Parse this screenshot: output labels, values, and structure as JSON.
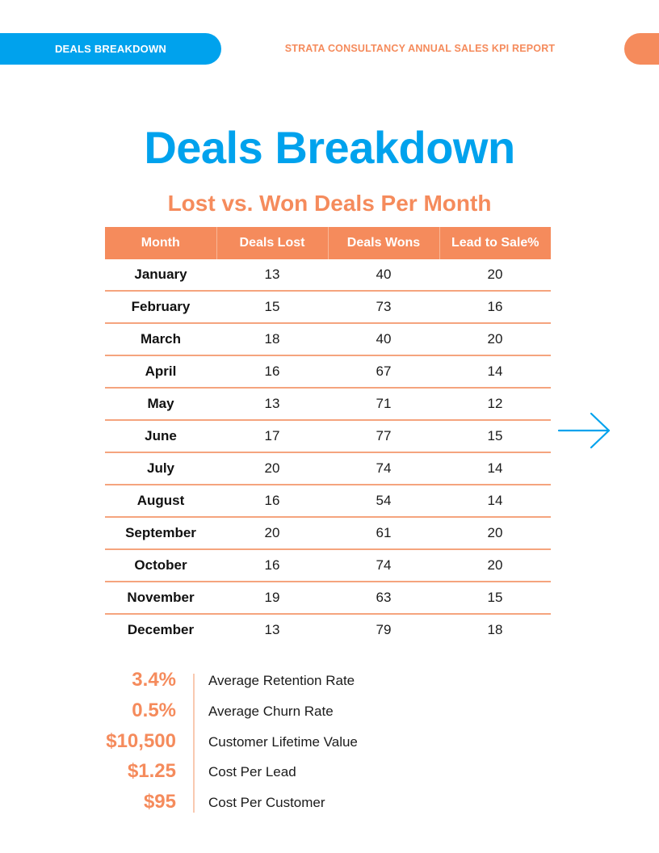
{
  "header": {
    "tab_label": "DEALS BREAKDOWN",
    "report_title": "STRATA CONSULTANCY ANNUAL SALES KPI REPORT"
  },
  "title": "Deals Breakdown",
  "subtitle": "Lost vs. Won Deals Per Month",
  "table": {
    "columns": [
      "Month",
      "Deals Lost",
      "Deals Wons",
      "Lead to Sale%"
    ],
    "rows": [
      [
        "January",
        "13",
        "40",
        "20"
      ],
      [
        "February",
        "15",
        "73",
        "16"
      ],
      [
        "March",
        "18",
        "40",
        "20"
      ],
      [
        "April",
        "16",
        "67",
        "14"
      ],
      [
        "May",
        "13",
        "71",
        "12"
      ],
      [
        "June",
        "17",
        "77",
        "15"
      ],
      [
        "July",
        "20",
        "74",
        "14"
      ],
      [
        "August",
        "16",
        "54",
        "14"
      ],
      [
        "September",
        "20",
        "61",
        "20"
      ],
      [
        "October",
        "16",
        "74",
        "20"
      ],
      [
        "November",
        "19",
        "63",
        "15"
      ],
      [
        "December",
        "13",
        "79",
        "18"
      ]
    ]
  },
  "stats": [
    {
      "value": "3.4%",
      "label": "Average Retention Rate"
    },
    {
      "value": "0.5%",
      "label": "Average Churn Rate"
    },
    {
      "value": "$10,500",
      "label": "Customer Lifetime Value"
    },
    {
      "value": "$1.25",
      "label": "Cost Per Lead"
    },
    {
      "value": "$95",
      "label": "Cost Per Customer"
    }
  ],
  "icons": {
    "next": "arrow-right-icon"
  },
  "colors": {
    "primary": "#00a2ed",
    "accent": "#f58b5c"
  }
}
